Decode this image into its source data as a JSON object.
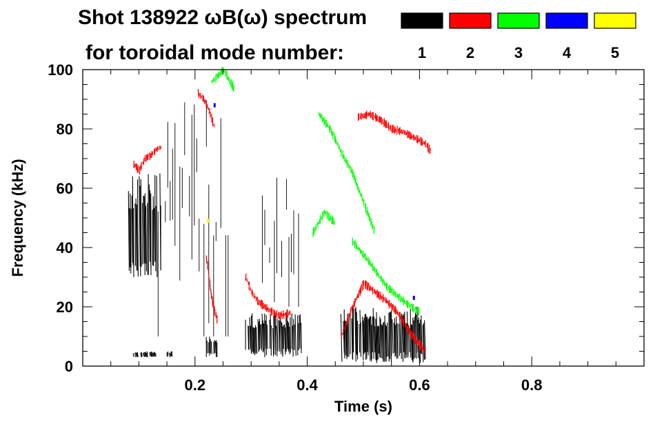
{
  "header": {
    "title_line1": "Shot 138922 ωB(ω) spectrum",
    "title_line2": "for toroidal mode number:"
  },
  "legend": {
    "placement": "top-right",
    "items": [
      {
        "label": "1",
        "color": "#000000"
      },
      {
        "label": "2",
        "color": "#ff0000"
      },
      {
        "label": "3",
        "color": "#00ff00"
      },
      {
        "label": "4",
        "color": "#0000ff"
      },
      {
        "label": "5",
        "color": "#ffff00"
      }
    ]
  },
  "chart_data": {
    "type": "spectrogram",
    "title": "Shot 138922 ωB(ω) spectrum",
    "xlabel": "Time (s)",
    "ylabel": "Frequency (kHz)",
    "xlim": [
      0.0,
      1.0
    ],
    "ylim": [
      0,
      100
    ],
    "xticks": [
      0.2,
      0.4,
      0.6,
      0.8
    ],
    "xtick_labels": [
      "0.2",
      "0.4",
      "0.6",
      "0.8"
    ],
    "yticks": [
      0,
      20,
      40,
      60,
      80,
      100
    ],
    "ytick_labels": [
      "0",
      "20",
      "40",
      "60",
      "80",
      "100"
    ],
    "grid": false,
    "series": [
      {
        "name": "1",
        "color": "#000000",
        "regions": [
          {
            "t": [
              0.08,
              0.14
            ],
            "f": [
              30,
              65
            ]
          },
          {
            "t": [
              0.09,
              0.13
            ],
            "f": [
              3,
              5
            ]
          },
          {
            "t": [
              0.15,
              0.16
            ],
            "f": [
              3,
              5
            ]
          },
          {
            "t": [
              0.22,
              0.24
            ],
            "f": [
              3,
              10
            ]
          },
          {
            "t": [
              0.29,
              0.39
            ],
            "f": [
              3,
              18
            ]
          },
          {
            "t": [
              0.46,
              0.61
            ],
            "f": [
              1,
              20
            ]
          }
        ],
        "sparse": [
          {
            "t": [
              0.13,
              0.26
            ],
            "f": [
              10,
              90
            ]
          },
          {
            "t": [
              0.32,
              0.39
            ],
            "f": [
              20,
              68
            ]
          }
        ]
      },
      {
        "name": "2",
        "color": "#ff0000",
        "tracks": [
          {
            "t": [
              0.09,
              0.1,
              0.11,
              0.12,
              0.13,
              0.14
            ],
            "f": [
              68,
              66,
              70,
              71,
              73,
              74
            ]
          },
          {
            "t": [
              0.205,
              0.215,
              0.225,
              0.235
            ],
            "f": [
              92,
              90,
              86,
              80
            ]
          },
          {
            "t": [
              0.22,
              0.225,
              0.23,
              0.235,
              0.24
            ],
            "f": [
              36,
              28,
              22,
              18,
              15
            ]
          },
          {
            "t": [
              0.29,
              0.3,
              0.31,
              0.33,
              0.35,
              0.37
            ],
            "f": [
              30,
              25,
              22,
              19,
              17,
              18
            ]
          },
          {
            "t": [
              0.46,
              0.48,
              0.5,
              0.52,
              0.54,
              0.56,
              0.58,
              0.6,
              0.61
            ],
            "f": [
              10,
              20,
              28,
              25,
              22,
              18,
              12,
              7,
              5
            ]
          },
          {
            "t": [
              0.49,
              0.51,
              0.53,
              0.55,
              0.57,
              0.59,
              0.61,
              0.62
            ],
            "f": [
              84,
              85,
              83,
              80,
              79,
              77,
              75,
              72
            ]
          }
        ]
      },
      {
        "name": "3",
        "color": "#00ff00",
        "tracks": [
          {
            "t": [
              0.42,
              0.44,
              0.46,
              0.48,
              0.5,
              0.52
            ],
            "f": [
              85,
              80,
              72,
              65,
              55,
              45
            ]
          },
          {
            "t": [
              0.41,
              0.43,
              0.45
            ],
            "f": [
              45,
              52,
              48
            ]
          },
          {
            "t": [
              0.48,
              0.51,
              0.54,
              0.57,
              0.6
            ],
            "f": [
              42,
              35,
              27,
              22,
              18
            ]
          },
          {
            "t": [
              0.23,
              0.25,
              0.27
            ],
            "f": [
              96,
              100,
              93
            ]
          }
        ]
      },
      {
        "name": "4",
        "color": "#0000ff",
        "points": [
          {
            "t": 0.235,
            "f": 88
          },
          {
            "t": 0.59,
            "f": 23
          }
        ]
      },
      {
        "name": "5",
        "color": "#ffff00",
        "points": [
          {
            "t": 0.223,
            "f": 49
          }
        ]
      }
    ]
  }
}
